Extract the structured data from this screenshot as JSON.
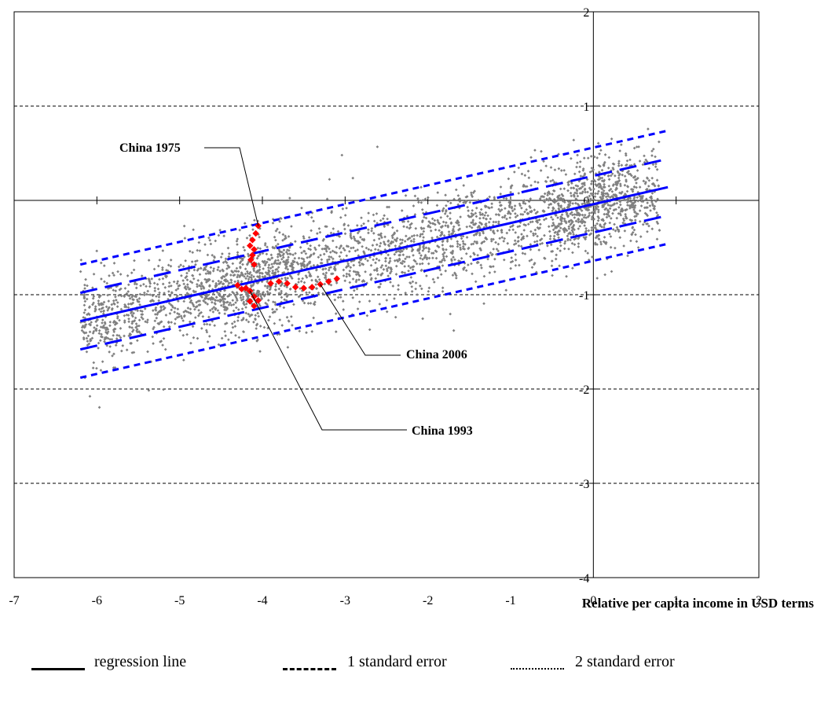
{
  "chart_data": {
    "type": "scatter",
    "title": "",
    "xlabel": "Relative per capita income in USD terms",
    "ylabel": "",
    "xlim": [
      -7,
      2
    ],
    "ylim": [
      -4,
      2
    ],
    "x_ticks": [
      "-7",
      "-6",
      "-5",
      "-4",
      "-3",
      "-2",
      "-1",
      "0",
      "1",
      "2"
    ],
    "y_ticks": [
      "2",
      "1",
      "0",
      "-1",
      "-2",
      "-3",
      "-4"
    ],
    "grid": "horizontal-dashed",
    "regression": {
      "intercept": -0.04,
      "slope": 0.2,
      "x_range": [
        -6.2,
        0.9
      ]
    },
    "bands": [
      {
        "name": "1 standard error",
        "offset": 0.3,
        "style": "long-dash"
      },
      {
        "name": "2 standard error",
        "offset": 0.6,
        "style": "short-dash"
      }
    ],
    "scatter_cloud": {
      "color": "#808080",
      "approx_points": 3200
    },
    "china_points": {
      "color": "#ff0000",
      "points": [
        [
          -4.05,
          -0.27
        ],
        [
          -4.08,
          -0.35
        ],
        [
          -4.12,
          -0.42
        ],
        [
          -4.15,
          -0.48
        ],
        [
          -4.1,
          -0.52
        ],
        [
          -4.12,
          -0.58
        ],
        [
          -4.14,
          -0.63
        ],
        [
          -4.1,
          -0.68
        ],
        [
          -4.3,
          -0.9
        ],
        [
          -4.25,
          -0.94
        ],
        [
          -4.2,
          -0.93
        ],
        [
          -4.15,
          -0.96
        ],
        [
          -4.1,
          -1.02
        ],
        [
          -4.15,
          -1.07
        ],
        [
          -4.1,
          -1.12
        ],
        [
          -4.05,
          -1.06
        ],
        [
          -3.9,
          -0.88
        ],
        [
          -3.8,
          -0.86
        ],
        [
          -3.7,
          -0.88
        ],
        [
          -3.6,
          -0.92
        ],
        [
          -3.5,
          -0.93
        ],
        [
          -3.4,
          -0.92
        ],
        [
          -3.3,
          -0.89
        ],
        [
          -3.2,
          -0.86
        ],
        [
          -3.1,
          -0.83
        ]
      ]
    },
    "annotations": [
      {
        "text": "China 1975",
        "point": [
          -4.05,
          -0.27
        ]
      },
      {
        "text": "China 2006",
        "point": [
          -3.3,
          -0.89
        ]
      },
      {
        "text": "China 1993",
        "point": [
          -4.15,
          -0.96
        ]
      }
    ]
  },
  "legend": {
    "items": [
      {
        "label": "regression line",
        "style": "solid"
      },
      {
        "label": "1 standard error",
        "style": "long-dash"
      },
      {
        "label": "2 standard error",
        "style": "short-dash"
      }
    ]
  }
}
